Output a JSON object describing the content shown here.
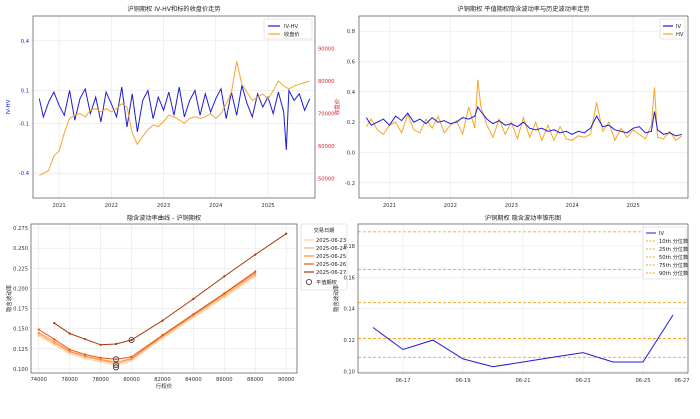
{
  "chart_data": [
    {
      "type": "line",
      "title": "沪铜期权 IV-HV和标的收盘价走势",
      "ylabel": "IV-HV",
      "y2label": "收盘价",
      "ylim": [
        -0.55,
        0.55
      ],
      "y2lim": [
        44000,
        100000
      ],
      "yticks": [
        -0.4,
        -0.1,
        0.1,
        0.4
      ],
      "y2ticks": [
        50000,
        60000,
        70000,
        80000,
        90000
      ],
      "xlim": [
        2020.5,
        2025.9
      ],
      "xticks": [
        "2021",
        "2022",
        "2023",
        "2024",
        "2025"
      ],
      "grid": true,
      "legend": "top-right",
      "series": [
        {
          "name": "IV-HV",
          "axis": "left",
          "color": "#1c1cd9",
          "x": [
            2020.62,
            2020.7,
            2020.8,
            2020.9,
            2021.0,
            2021.1,
            2021.2,
            2021.3,
            2021.4,
            2021.5,
            2021.6,
            2021.7,
            2021.8,
            2021.9,
            2022.0,
            2022.1,
            2022.2,
            2022.3,
            2022.4,
            2022.5,
            2022.6,
            2022.7,
            2022.8,
            2022.9,
            2023.0,
            2023.1,
            2023.2,
            2023.3,
            2023.4,
            2023.5,
            2023.6,
            2023.7,
            2023.8,
            2023.9,
            2024.0,
            2024.1,
            2024.2,
            2024.3,
            2024.4,
            2024.5,
            2024.6,
            2024.7,
            2024.8,
            2024.9,
            2025.0,
            2025.1,
            2025.2,
            2025.3,
            2025.35,
            2025.4,
            2025.5,
            2025.6,
            2025.7,
            2025.8
          ],
          "values": [
            0.05,
            -0.06,
            0.03,
            0.09,
            0.01,
            -0.05,
            0.1,
            -0.08,
            0.05,
            0.11,
            -0.04,
            0.06,
            -0.09,
            0.09,
            0.02,
            -0.06,
            0.12,
            -0.12,
            0.08,
            -0.15,
            0.04,
            0.1,
            -0.07,
            0.06,
            -0.02,
            0.09,
            -0.05,
            0.12,
            -0.06,
            0.04,
            0.1,
            -0.05,
            0.08,
            -0.03,
            0.05,
            0.11,
            -0.07,
            0.09,
            -0.05,
            0.13,
            0.02,
            -0.06,
            0.08,
            0.0,
            0.06,
            -0.04,
            0.09,
            -0.03,
            -0.26,
            0.1,
            0.04,
            0.08,
            -0.02,
            0.05
          ]
        },
        {
          "name": "收盘价",
          "axis": "right",
          "color": "#f5a623",
          "x": [
            2020.62,
            2020.7,
            2020.8,
            2020.9,
            2021.0,
            2021.1,
            2021.2,
            2021.3,
            2021.4,
            2021.5,
            2021.6,
            2021.7,
            2021.8,
            2021.9,
            2022.0,
            2022.1,
            2022.2,
            2022.3,
            2022.4,
            2022.5,
            2022.6,
            2022.7,
            2022.8,
            2022.9,
            2023.0,
            2023.1,
            2023.2,
            2023.3,
            2023.4,
            2023.5,
            2023.6,
            2023.7,
            2023.8,
            2023.9,
            2024.0,
            2024.1,
            2024.2,
            2024.3,
            2024.4,
            2024.5,
            2024.6,
            2024.7,
            2024.8,
            2024.9,
            2025.0,
            2025.1,
            2025.2,
            2025.3,
            2025.4,
            2025.5,
            2025.6,
            2025.7,
            2025.8
          ],
          "values": [
            51000,
            51500,
            52500,
            57000,
            58500,
            64000,
            68500,
            69500,
            70000,
            69000,
            71000,
            71500,
            70500,
            71500,
            70500,
            71500,
            73000,
            72000,
            64000,
            60500,
            63000,
            65000,
            66500,
            66000,
            67500,
            69500,
            69000,
            68000,
            67000,
            68500,
            69000,
            68500,
            69000,
            70000,
            68500,
            70000,
            73000,
            76500,
            86000,
            79000,
            76500,
            74000,
            75000,
            76000,
            74500,
            77000,
            80000,
            78500,
            77500,
            78500,
            79000,
            79500,
            80000
          ]
        }
      ]
    },
    {
      "type": "line",
      "title": "沪铜期权 平值期权隐含波动率与历史波动率走势",
      "ylim": [
        -0.3,
        0.9
      ],
      "yticks": [
        -0.2,
        0.0,
        0.2,
        0.4,
        0.6,
        0.8
      ],
      "xlim": [
        2020.5,
        2025.9
      ],
      "xticks": [
        "2021",
        "2022",
        "2023",
        "2024",
        "2025"
      ],
      "grid": true,
      "legend": "top-right",
      "series": [
        {
          "name": "IV",
          "color": "#1c1cd9",
          "x": [
            2020.62,
            2020.7,
            2020.8,
            2020.9,
            2021.0,
            2021.1,
            2021.2,
            2021.3,
            2021.4,
            2021.5,
            2021.6,
            2021.7,
            2021.8,
            2021.9,
            2022.0,
            2022.1,
            2022.2,
            2022.3,
            2022.4,
            2022.45,
            2022.5,
            2022.6,
            2022.7,
            2022.8,
            2022.9,
            2023.0,
            2023.1,
            2023.2,
            2023.3,
            2023.4,
            2023.5,
            2023.6,
            2023.7,
            2023.8,
            2023.9,
            2024.0,
            2024.1,
            2024.2,
            2024.3,
            2024.4,
            2024.5,
            2024.6,
            2024.7,
            2024.8,
            2024.9,
            2025.0,
            2025.1,
            2025.2,
            2025.3,
            2025.35,
            2025.4,
            2025.5,
            2025.6,
            2025.7,
            2025.8
          ],
          "values": [
            0.23,
            0.18,
            0.2,
            0.22,
            0.18,
            0.24,
            0.21,
            0.26,
            0.2,
            0.22,
            0.19,
            0.23,
            0.2,
            0.21,
            0.19,
            0.2,
            0.23,
            0.22,
            0.24,
            0.3,
            0.27,
            0.22,
            0.19,
            0.21,
            0.18,
            0.19,
            0.17,
            0.2,
            0.16,
            0.15,
            0.16,
            0.14,
            0.15,
            0.13,
            0.14,
            0.12,
            0.14,
            0.13,
            0.16,
            0.24,
            0.17,
            0.18,
            0.15,
            0.14,
            0.13,
            0.16,
            0.17,
            0.13,
            0.14,
            0.27,
            0.15,
            0.12,
            0.13,
            0.11,
            0.12
          ]
        },
        {
          "name": "HV",
          "color": "#f5a623",
          "x": [
            2020.62,
            2020.7,
            2020.8,
            2020.9,
            2021.0,
            2021.1,
            2021.2,
            2021.3,
            2021.4,
            2021.5,
            2021.6,
            2021.7,
            2021.8,
            2021.9,
            2022.0,
            2022.1,
            2022.2,
            2022.3,
            2022.4,
            2022.45,
            2022.5,
            2022.6,
            2022.7,
            2022.8,
            2022.9,
            2023.0,
            2023.1,
            2023.2,
            2023.3,
            2023.4,
            2023.5,
            2023.6,
            2023.7,
            2023.8,
            2023.9,
            2024.0,
            2024.1,
            2024.2,
            2024.3,
            2024.4,
            2024.5,
            2024.6,
            2024.7,
            2024.8,
            2024.9,
            2025.0,
            2025.1,
            2025.2,
            2025.3,
            2025.35,
            2025.4,
            2025.5,
            2025.6,
            2025.7,
            2025.8
          ],
          "values": [
            0.17,
            0.22,
            0.15,
            0.12,
            0.18,
            0.2,
            0.13,
            0.25,
            0.15,
            0.13,
            0.22,
            0.16,
            0.24,
            0.13,
            0.18,
            0.21,
            0.12,
            0.3,
            0.16,
            0.48,
            0.3,
            0.18,
            0.1,
            0.22,
            0.12,
            0.2,
            0.09,
            0.23,
            0.1,
            0.2,
            0.08,
            0.18,
            0.08,
            0.17,
            0.09,
            0.08,
            0.11,
            0.1,
            0.12,
            0.33,
            0.14,
            0.2,
            0.08,
            0.16,
            0.1,
            0.15,
            0.12,
            0.09,
            0.18,
            0.43,
            0.1,
            0.09,
            0.14,
            0.08,
            0.11
          ]
        }
      ]
    },
    {
      "type": "line",
      "title": "隐含波动率曲线 - 沪铜期权",
      "xlabel": "行权价",
      "ylabel": "隐含波动率",
      "xlim": [
        73500,
        90700
      ],
      "ylim": [
        0.095,
        0.28
      ],
      "xticks": [
        74000,
        76000,
        78000,
        80000,
        82000,
        84000,
        86000,
        88000,
        90000
      ],
      "yticks": [
        0.1,
        0.125,
        0.15,
        0.175,
        0.2,
        0.225,
        0.25,
        0.275
      ],
      "grid": true,
      "legend_title": "交易日期",
      "legend": "outside-right",
      "atm_label": "平值期权",
      "atm_points": [
        {
          "x": 79000,
          "y": 0.102
        },
        {
          "x": 79000,
          "y": 0.105
        },
        {
          "x": 79000,
          "y": 0.112
        },
        {
          "x": 80000,
          "y": 0.136
        }
      ],
      "series": [
        {
          "name": "2025-06-23",
          "color": "#fdd0a2",
          "x": [
            74000,
            75000,
            76000,
            77000,
            78000,
            79000,
            80000,
            82000,
            84000,
            86000,
            88000
          ],
          "values": [
            0.141,
            0.13,
            0.119,
            0.113,
            0.109,
            0.104,
            0.11,
            0.138,
            0.164,
            0.189,
            0.215
          ]
        },
        {
          "name": "2025-06-24",
          "color": "#fdae6b",
          "x": [
            74000,
            75000,
            76000,
            77000,
            78000,
            79000,
            80000,
            82000,
            84000,
            86000,
            88000
          ],
          "values": [
            0.143,
            0.132,
            0.121,
            0.115,
            0.111,
            0.106,
            0.112,
            0.14,
            0.166,
            0.191,
            0.217
          ]
        },
        {
          "name": "2025-06-25",
          "color": "#fd8d3c",
          "x": [
            74000,
            75000,
            76000,
            77000,
            78000,
            79000,
            80000,
            82000,
            84000,
            86000,
            88000
          ],
          "values": [
            0.145,
            0.134,
            0.122,
            0.116,
            0.112,
            0.108,
            0.113,
            0.141,
            0.167,
            0.193,
            0.219
          ]
        },
        {
          "name": "2025-06-26",
          "color": "#e6550d",
          "x": [
            74000,
            75000,
            76000,
            77000,
            78000,
            79000,
            80000,
            82000,
            84000,
            86000,
            88000
          ],
          "values": [
            0.149,
            0.137,
            0.124,
            0.118,
            0.114,
            0.112,
            0.115,
            0.142,
            0.168,
            0.194,
            0.221
          ]
        },
        {
          "name": "2025-06-27",
          "color": "#a63603",
          "x": [
            75000,
            76000,
            77000,
            78000,
            79000,
            80000,
            82000,
            84000,
            86000,
            88000,
            90000
          ],
          "values": [
            0.157,
            0.144,
            0.137,
            0.13,
            0.131,
            0.136,
            0.16,
            0.187,
            0.215,
            0.242,
            0.268
          ]
        }
      ]
    },
    {
      "type": "line",
      "title": "沪铜期权 隐含波动率锥形图",
      "ylabel": "隐含波动率",
      "xlim": [
        -0.5,
        10.5
      ],
      "ylim": [
        0.099,
        0.194
      ],
      "yticks": [
        0.1,
        0.12,
        0.14,
        0.16,
        0.18
      ],
      "xticks": [
        {
          "pos": 1,
          "label": "06-17"
        },
        {
          "pos": 3,
          "label": "06-19"
        },
        {
          "pos": 5,
          "label": "06-21"
        },
        {
          "pos": 7,
          "label": "06-23"
        },
        {
          "pos": 9,
          "label": "06-25"
        },
        {
          "pos": 11,
          "label": "06-27"
        }
      ],
      "grid": true,
      "legend": "top-right",
      "series": [
        {
          "name": "IV",
          "color": "#1c1cd9",
          "x": [
            0,
            1,
            2,
            3,
            4,
            5,
            6,
            7,
            8,
            9,
            10
          ],
          "values": [
            0.128,
            0.114,
            0.12,
            0.108,
            0.103,
            0.106,
            0.109,
            0.112,
            0.106,
            0.106,
            0.136
          ]
        }
      ],
      "percentiles": [
        {
          "name": "10th 分位数",
          "value": 0.109,
          "color": "#f5a623"
        },
        {
          "name": "25th 分位数",
          "value": 0.121,
          "color": "#f5a623"
        },
        {
          "name": "50th 分位数",
          "value": 0.144,
          "color": "#f5a623"
        },
        {
          "name": "75th 分位数",
          "value": 0.165,
          "color": "#f5a623"
        },
        {
          "name": "90th 分位数",
          "value": 0.189,
          "color": "#f5a623"
        }
      ]
    }
  ]
}
